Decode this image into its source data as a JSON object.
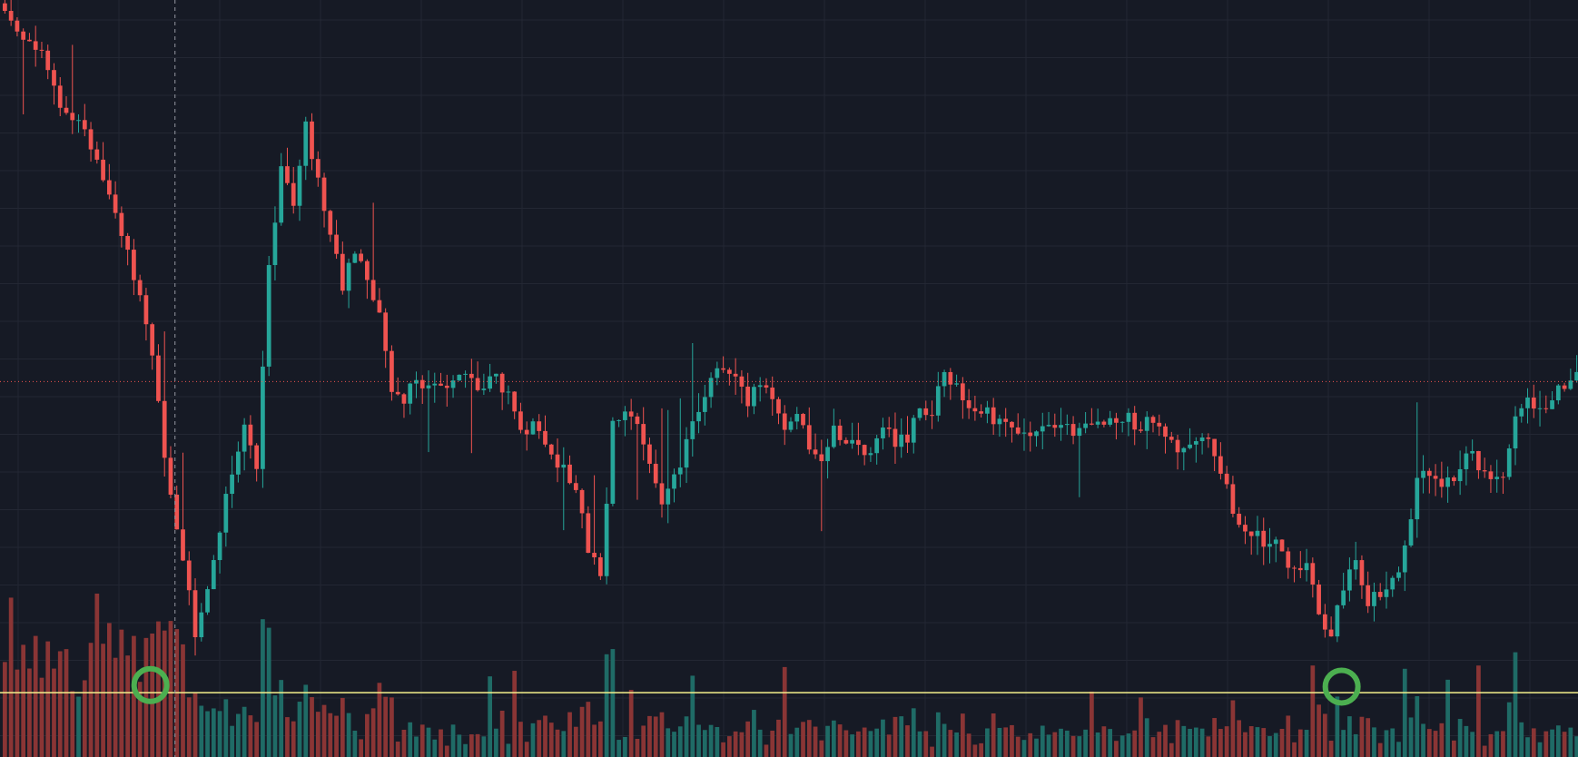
{
  "theme": {
    "background": "#161a25",
    "grid": "#232733",
    "up": "#26a69a",
    "down": "#ef5350",
    "up_volume": "#1f6b66",
    "down_volume": "#8a3535",
    "support_line": "#f5f08c",
    "price_line": "#ef5350",
    "crosshair": "#9598a1",
    "marker": "#4caf50"
  },
  "chart_data": {
    "type": "candlestick",
    "grid": true,
    "legend": "none",
    "axes": "hidden",
    "price_range": [
      0,
      100
    ],
    "series": [
      {
        "name": "",
        "kind": "ohlc",
        "keypoints": [
          [
            0,
            98
          ],
          [
            6,
            93
          ],
          [
            9,
            86
          ],
          [
            13,
            83
          ],
          [
            17,
            74
          ],
          [
            20,
            67
          ],
          [
            23,
            58
          ],
          [
            26,
            40
          ],
          [
            29,
            26
          ],
          [
            31,
            16
          ],
          [
            33,
            23
          ],
          [
            35,
            30
          ],
          [
            37,
            38
          ],
          [
            39,
            44
          ],
          [
            41,
            38
          ],
          [
            43,
            64
          ],
          [
            45,
            77
          ],
          [
            47,
            73
          ],
          [
            49,
            83
          ],
          [
            51,
            76
          ],
          [
            53,
            69
          ],
          [
            55,
            62
          ],
          [
            57,
            67
          ],
          [
            59,
            64
          ],
          [
            61,
            58
          ],
          [
            63,
            49
          ],
          [
            65,
            47
          ],
          [
            67,
            50
          ],
          [
            69,
            48
          ],
          [
            71,
            49
          ],
          [
            73,
            49
          ],
          [
            75,
            50
          ],
          [
            77,
            48
          ],
          [
            80,
            50
          ],
          [
            82,
            48
          ],
          [
            84,
            44
          ],
          [
            87,
            43
          ],
          [
            90,
            39
          ],
          [
            93,
            36
          ],
          [
            95,
            27
          ],
          [
            97,
            24
          ],
          [
            99,
            45
          ],
          [
            101,
            46
          ],
          [
            103,
            43
          ],
          [
            105,
            39
          ],
          [
            107,
            33
          ],
          [
            110,
            39
          ],
          [
            112,
            45
          ],
          [
            115,
            49
          ],
          [
            117,
            52
          ],
          [
            119,
            51
          ],
          [
            121,
            47
          ],
          [
            123,
            49
          ],
          [
            125,
            47
          ],
          [
            127,
            44
          ],
          [
            129,
            45
          ],
          [
            131,
            41
          ],
          [
            133,
            40
          ],
          [
            135,
            43
          ],
          [
            137,
            41
          ],
          [
            139,
            41
          ],
          [
            141,
            40
          ],
          [
            143,
            43
          ],
          [
            145,
            42
          ],
          [
            147,
            42
          ],
          [
            149,
            46
          ],
          [
            151,
            45
          ],
          [
            153,
            51
          ],
          [
            155,
            49
          ],
          [
            157,
            47
          ],
          [
            159,
            46
          ],
          [
            162,
            44
          ],
          [
            164,
            43
          ],
          [
            167,
            43
          ],
          [
            170,
            43
          ],
          [
            173,
            43
          ],
          [
            176,
            43
          ],
          [
            179,
            44
          ],
          [
            182,
            45
          ],
          [
            185,
            44
          ],
          [
            188,
            44
          ],
          [
            191,
            41
          ],
          [
            194,
            42
          ],
          [
            196,
            42
          ],
          [
            198,
            37
          ],
          [
            201,
            31
          ],
          [
            204,
            29
          ],
          [
            207,
            28
          ],
          [
            210,
            24
          ],
          [
            212,
            26
          ],
          [
            214,
            19
          ],
          [
            216,
            16
          ],
          [
            218,
            23
          ],
          [
            220,
            25
          ],
          [
            222,
            21
          ],
          [
            224,
            21
          ],
          [
            226,
            24
          ],
          [
            228,
            27
          ],
          [
            230,
            36
          ],
          [
            232,
            38
          ],
          [
            234,
            36
          ],
          [
            236,
            37
          ],
          [
            238,
            41
          ],
          [
            240,
            38
          ],
          [
            242,
            36
          ],
          [
            244,
            38
          ],
          [
            246,
            45
          ],
          [
            248,
            47
          ],
          [
            250,
            45
          ],
          [
            252,
            48
          ],
          [
            254,
            49
          ],
          [
            256,
            50
          ]
        ]
      },
      {
        "name": "",
        "kind": "volume",
        "note_ratio": [
          0,
          1
        ]
      }
    ],
    "annotations": [
      {
        "type": "horizontal-line",
        "role": "support",
        "price": 8.5
      },
      {
        "type": "horizontal-line",
        "role": "last-price",
        "price": 49.6
      },
      {
        "type": "vertical-line",
        "role": "crosshair",
        "bar": 28
      },
      {
        "type": "circle-marker",
        "role": "low-touch",
        "bar": 24,
        "price": 9.5
      },
      {
        "type": "circle-marker",
        "role": "low-touch",
        "bar": 218,
        "price": 9.3
      }
    ]
  }
}
